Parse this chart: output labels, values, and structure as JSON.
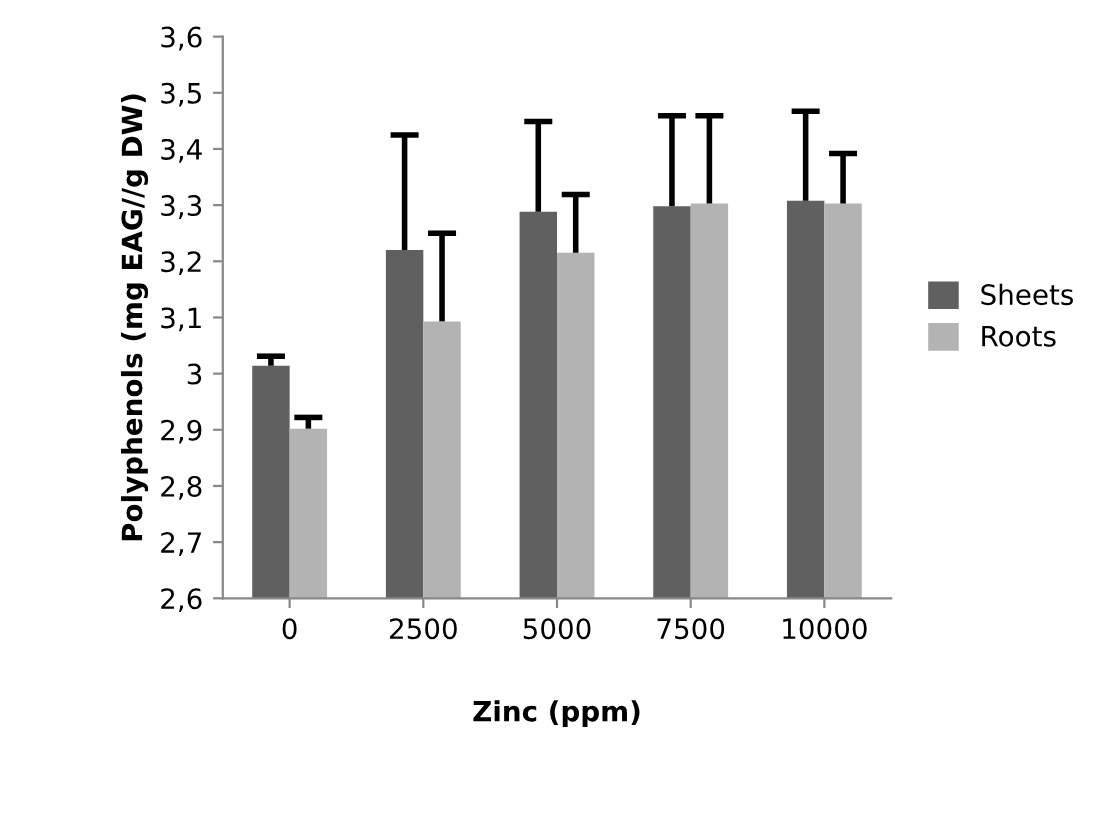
{
  "chart_data": {
    "type": "bar",
    "xlabel": "Zinc (ppm)",
    "ylabel": "Polyphenols (mg EAG//g DW)",
    "categories": [
      "0",
      "2500",
      "5000",
      "7500",
      "10000"
    ],
    "series": [
      {
        "name": "Sheets",
        "color": "#606060",
        "values": [
          3.014,
          3.22,
          3.288,
          3.298,
          3.308
        ],
        "errors": [
          [
            3.014,
            3.031
          ],
          [
            3.22,
            3.425
          ],
          [
            3.288,
            3.449
          ],
          [
            3.298,
            3.459
          ],
          [
            3.308,
            3.467
          ]
        ]
      },
      {
        "name": "Roots",
        "color": "#b3b3b3",
        "values": [
          2.902,
          3.093,
          3.215,
          3.303,
          3.303
        ],
        "errors": [
          [
            2.902,
            2.922
          ],
          [
            3.093,
            3.25
          ],
          [
            3.215,
            3.319
          ],
          [
            3.303,
            3.459
          ],
          [
            3.303,
            3.392
          ]
        ]
      }
    ],
    "ylim": [
      2.6,
      3.6
    ],
    "yticks": [
      {
        "value": 2.6,
        "label": "2,6"
      },
      {
        "value": 2.7,
        "label": "2,7"
      },
      {
        "value": 2.8,
        "label": "2,8"
      },
      {
        "value": 2.9,
        "label": "2,9"
      },
      {
        "value": 3.0,
        "label": "3"
      },
      {
        "value": 3.1,
        "label": "3,1"
      },
      {
        "value": 3.2,
        "label": "3,2"
      },
      {
        "value": 3.3,
        "label": "3,3"
      },
      {
        "value": 3.4,
        "label": "3,4"
      },
      {
        "value": 3.5,
        "label": "3,5"
      },
      {
        "value": 3.6,
        "label": "3,6"
      }
    ],
    "grid": false,
    "legend": "right"
  }
}
